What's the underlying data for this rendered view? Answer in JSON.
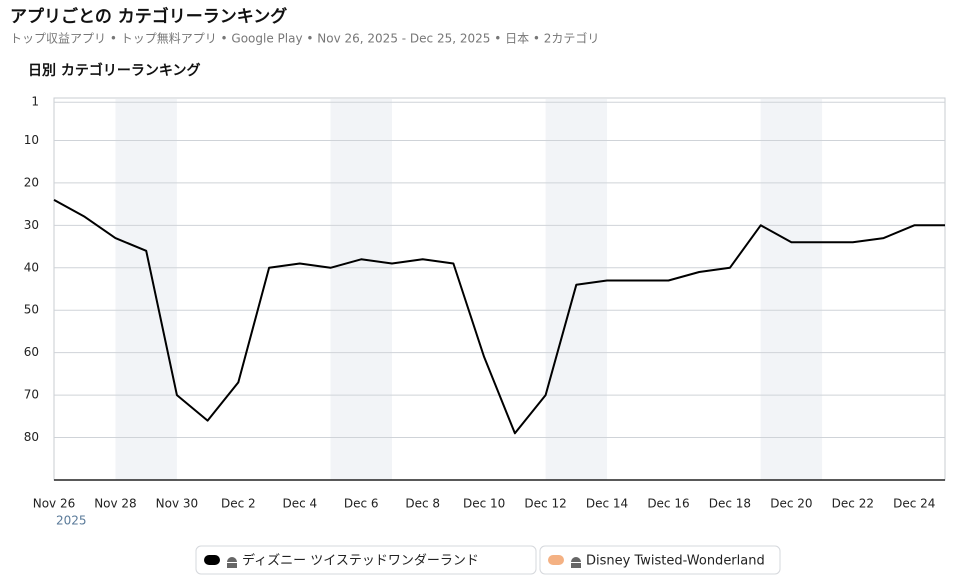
{
  "chart_data": {
    "type": "line",
    "title": "アプリごとの カテゴリーランキング",
    "subtitle": "トップ収益アプリ • トップ無料アプリ • Google Play • Nov 26, 2025 - Dec 25, 2025 • 日本 • 2カテゴリ",
    "chart_title": "日別 カテゴリーランキング",
    "year_label": "2025",
    "categories": [
      "Nov 26",
      null,
      "Nov 28",
      null,
      "Nov 30",
      null,
      "Dec 2",
      null,
      "Dec 4",
      null,
      "Dec 6",
      null,
      "Dec 8",
      null,
      "Dec 10",
      null,
      "Dec 12",
      null,
      "Dec 14",
      null,
      "Dec 16",
      null,
      "Dec 18",
      null,
      "Dec 20",
      null,
      "Dec 22",
      null,
      "Dec 24",
      null
    ],
    "highlight_ranges": [
      [
        2,
        4
      ],
      [
        9,
        11
      ],
      [
        16,
        18
      ],
      [
        23,
        25
      ]
    ],
    "series": [
      {
        "name": "ディズニー ツイステッドワンダーランド",
        "color": "#000000",
        "values": [
          24,
          28,
          33,
          36,
          70,
          76,
          67,
          40,
          39,
          40,
          38,
          39,
          38,
          39,
          61,
          79,
          70,
          44,
          43,
          43,
          43,
          41,
          40,
          30,
          34,
          34,
          34,
          33,
          30,
          30
        ]
      },
      {
        "name": "Disney Twisted-Wonderland",
        "color": "#f4b183",
        "values": [
          null,
          null,
          null,
          null,
          null,
          null,
          null,
          null,
          null,
          null,
          null,
          null,
          null,
          null,
          null,
          null,
          null,
          null,
          null,
          null,
          null,
          null,
          null,
          null,
          null,
          null,
          null,
          null,
          null,
          null
        ]
      }
    ],
    "ylim": [
      0,
      90
    ],
    "yticks": [
      1,
      10,
      20,
      30,
      40,
      50,
      60,
      70,
      80
    ],
    "y_reversed": true,
    "grid": true
  }
}
